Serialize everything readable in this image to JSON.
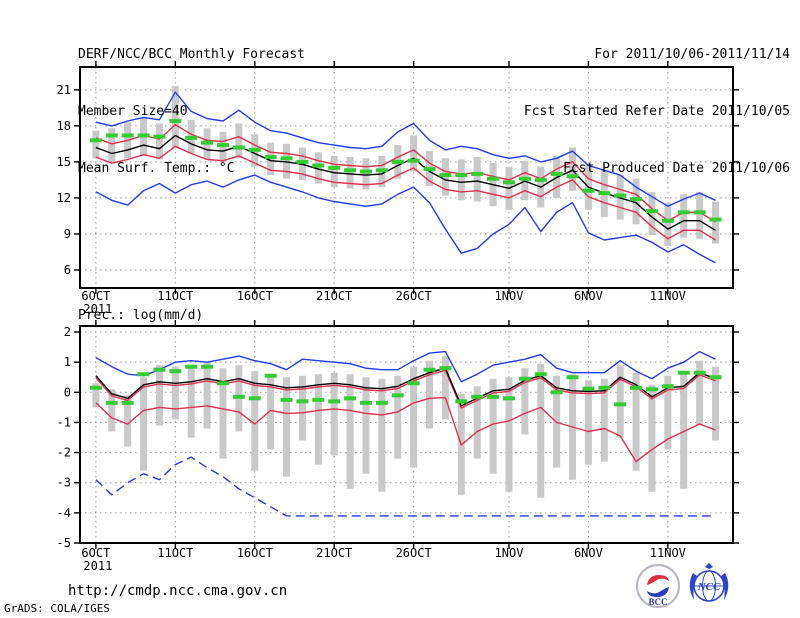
{
  "header": {
    "title": "DERF/NCC/BCC Monthly Forecast",
    "member_size": "Member Size=40",
    "for_range": "For 2011/10/06-2011/11/14",
    "refer_date": "Fcst Started Refer Date 2011/10/05",
    "produced_date": "Fcst Produced Date 2011/10/06"
  },
  "footer": {
    "url": "http://cmdp.ncc.cma.gov.cn",
    "credit": "GrADS: COLA/IGES",
    "logo_bcc": "BCC",
    "logo_ncc": "NCC"
  },
  "colors": {
    "envelope_blue": "#1e3cf0",
    "spread_red": "#e13048",
    "mean_black": "#000000",
    "forecast_green": "#33cc33",
    "bar_gray": "#c9c9c9",
    "grid_gray": "#9a9a9a"
  },
  "chart_data": [
    {
      "name": "surface-temperature-forecast",
      "type": "line",
      "label": "Mean Surf. Temp.: °C",
      "n_days": 40,
      "xlim": [
        -1,
        40.1
      ],
      "ylim": [
        4.5,
        22.9
      ],
      "yticks": [
        21,
        18,
        15,
        12,
        9,
        6
      ],
      "xticks": [
        {
          "label": "6OCT",
          "day": 0,
          "sub": "2011"
        },
        {
          "label": "11OCT",
          "day": 5
        },
        {
          "label": "16OCT",
          "day": 10
        },
        {
          "label": "21OCT",
          "day": 15
        },
        {
          "label": "26OCT",
          "day": 20
        },
        {
          "label": "1NOV",
          "day": 26
        },
        {
          "label": "6NOV",
          "day": 31
        },
        {
          "label": "11NOV",
          "day": 36
        }
      ],
      "bars": {
        "name": "member-spread-bar",
        "color": "#c9c9c9",
        "lo": [
          15.3,
          15.0,
          15.3,
          15.6,
          15.2,
          16.1,
          15.7,
          15.2,
          15.0,
          15.3,
          14.6,
          13.9,
          13.6,
          13.5,
          13.2,
          12.9,
          12.8,
          12.7,
          12.9,
          13.6,
          14.2,
          13.0,
          12.2,
          11.8,
          11.7,
          11.3,
          11.0,
          11.8,
          11.2,
          12.0,
          12.6,
          11.0,
          10.4,
          10.2,
          9.8,
          8.9,
          8.0,
          8.7,
          8.6,
          8.2
        ],
        "hi": [
          17.6,
          17.8,
          18.3,
          18.7,
          18.2,
          21.3,
          18.5,
          17.8,
          17.5,
          18.2,
          17.3,
          16.6,
          16.5,
          16.2,
          15.8,
          15.5,
          15.4,
          15.3,
          15.5,
          16.4,
          17.2,
          15.9,
          15.3,
          15.2,
          15.4,
          14.9,
          14.6,
          15.1,
          14.6,
          15.5,
          16.2,
          14.8,
          14.3,
          13.9,
          13.6,
          12.5,
          11.6,
          12.3,
          12.5,
          11.7
        ]
      },
      "series": [
        {
          "name": "envelope-max",
          "color": "#1e3cf0",
          "width": 1.4,
          "values": [
            18.3,
            18.0,
            18.4,
            18.7,
            18.5,
            20.8,
            19.2,
            18.6,
            18.4,
            19.3,
            18.3,
            17.6,
            17.4,
            17.0,
            16.6,
            16.4,
            16.2,
            16.1,
            16.3,
            17.5,
            18.2,
            16.8,
            16.0,
            16.3,
            16.1,
            15.6,
            15.3,
            15.5,
            15.0,
            15.3,
            15.9,
            14.7,
            14.3,
            13.9,
            12.9,
            12.1,
            11.3,
            11.9,
            12.4,
            11.8
          ]
        },
        {
          "name": "spread-upper",
          "color": "#e13048",
          "width": 1.4,
          "values": [
            17.0,
            16.5,
            16.8,
            17.2,
            16.9,
            18.1,
            17.3,
            16.8,
            16.7,
            17.1,
            16.4,
            15.8,
            15.7,
            15.5,
            15.1,
            14.8,
            14.7,
            14.6,
            14.7,
            15.4,
            16.0,
            14.9,
            14.2,
            14.0,
            14.1,
            13.8,
            13.5,
            14.1,
            13.6,
            14.4,
            15.0,
            13.6,
            13.1,
            12.7,
            12.3,
            11.1,
            10.1,
            10.8,
            10.8,
            10.0
          ]
        },
        {
          "name": "ensemble-mean",
          "color": "#000000",
          "width": 1.4,
          "values": [
            16.2,
            15.7,
            16.0,
            16.4,
            16.1,
            17.2,
            16.5,
            16.0,
            15.9,
            16.3,
            15.7,
            15.1,
            15.0,
            14.8,
            14.4,
            14.1,
            14.0,
            13.9,
            14.0,
            14.7,
            15.3,
            14.2,
            13.5,
            13.3,
            13.4,
            13.1,
            12.8,
            13.4,
            12.9,
            13.7,
            14.3,
            12.9,
            12.4,
            12.0,
            11.6,
            10.4,
            9.4,
            10.1,
            10.1,
            9.3
          ]
        },
        {
          "name": "spread-lower",
          "color": "#e13048",
          "width": 1.4,
          "values": [
            15.4,
            14.9,
            15.2,
            15.6,
            15.3,
            16.3,
            15.7,
            15.2,
            15.1,
            15.5,
            14.9,
            14.3,
            14.2,
            14.0,
            13.6,
            13.3,
            13.2,
            13.1,
            13.2,
            13.9,
            14.5,
            13.4,
            12.7,
            12.5,
            12.6,
            12.3,
            12.0,
            12.6,
            12.1,
            12.9,
            13.5,
            12.1,
            11.6,
            11.2,
            10.8,
            9.6,
            8.6,
            9.3,
            9.3,
            8.5
          ]
        },
        {
          "name": "envelope-min",
          "color": "#1e3cf0",
          "width": 1.4,
          "values": [
            12.5,
            11.8,
            11.4,
            12.6,
            13.2,
            12.4,
            13.1,
            13.4,
            12.9,
            13.5,
            13.9,
            13.3,
            12.9,
            12.5,
            12.0,
            11.7,
            11.5,
            11.3,
            11.5,
            12.3,
            12.9,
            11.6,
            9.4,
            7.4,
            7.8,
            9.0,
            9.8,
            11.2,
            9.2,
            10.8,
            11.6,
            9.1,
            8.5,
            8.7,
            8.9,
            8.3,
            7.5,
            8.1,
            7.3,
            6.6
          ]
        },
        {
          "name": "forecast-dashes",
          "color": "#33cc33",
          "type": "dash-marks",
          "width": 4,
          "values": [
            16.8,
            17.2,
            17.2,
            17.2,
            17.1,
            18.4,
            17.0,
            16.6,
            16.4,
            16.2,
            16.0,
            15.4,
            15.3,
            15.0,
            14.7,
            14.5,
            14.3,
            14.2,
            14.3,
            15.0,
            15.1,
            14.4,
            13.9,
            13.9,
            14.0,
            13.6,
            13.3,
            13.6,
            13.5,
            14.0,
            13.8,
            12.6,
            12.4,
            12.2,
            11.9,
            10.9,
            10.1,
            10.8,
            10.8,
            10.2
          ]
        }
      ]
    },
    {
      "name": "precipitation-forecast",
      "type": "line",
      "label": "Prec.: log(mm/d)",
      "n_days": 40,
      "xlim": [
        -1,
        40.1
      ],
      "ylim": [
        -5.0,
        2.2
      ],
      "yticks": [
        2,
        1,
        0,
        -1,
        -2,
        -3,
        -4,
        -5
      ],
      "xticks": [
        {
          "label": "6OCT",
          "day": 0,
          "sub": "2011"
        },
        {
          "label": "11OCT",
          "day": 5
        },
        {
          "label": "16OCT",
          "day": 10
        },
        {
          "label": "21OCT",
          "day": 15
        },
        {
          "label": "26OCT",
          "day": 20
        },
        {
          "label": "1NOV",
          "day": 26
        },
        {
          "label": "6NOV",
          "day": 31
        },
        {
          "label": "11NOV",
          "day": 36
        }
      ],
      "bars": {
        "name": "member-spread-bar",
        "color": "#c9c9c9",
        "lo": [
          -0.5,
          -1.3,
          -1.8,
          -2.6,
          -1.1,
          -0.9,
          -1.5,
          -1.2,
          -2.2,
          -1.3,
          -2.6,
          -1.9,
          -2.8,
          -1.6,
          -2.4,
          -2.1,
          -3.2,
          -2.7,
          -3.3,
          -2.2,
          -2.5,
          -1.2,
          -0.9,
          -3.4,
          -2.2,
          -2.7,
          -3.3,
          -1.4,
          -3.5,
          -2.5,
          -2.9,
          -2.4,
          -2.3,
          -1.5,
          -2.6,
          -3.3,
          -1.9,
          -3.2,
          -1.1,
          -1.6
        ],
        "hi": [
          0.3,
          0.1,
          -0.1,
          0.5,
          0.9,
          0.85,
          0.9,
          1.0,
          0.8,
          0.9,
          0.7,
          0.6,
          0.5,
          0.55,
          0.6,
          0.65,
          0.6,
          0.5,
          0.45,
          0.55,
          0.85,
          1.05,
          1.2,
          -0.05,
          0.2,
          0.45,
          0.5,
          0.8,
          0.95,
          0.55,
          0.6,
          0.4,
          0.45,
          0.9,
          0.65,
          0.25,
          0.55,
          0.6,
          1.05,
          0.85
        ]
      },
      "series": [
        {
          "name": "envelope-max",
          "color": "#1e3cf0",
          "width": 1.4,
          "values": [
            1.15,
            0.85,
            0.6,
            0.55,
            0.75,
            1.0,
            1.05,
            1.0,
            1.1,
            1.2,
            1.05,
            0.95,
            0.75,
            1.1,
            1.05,
            1.0,
            0.95,
            0.8,
            0.75,
            0.75,
            1.05,
            1.3,
            1.35,
            0.35,
            0.6,
            0.9,
            1.0,
            1.1,
            1.25,
            0.8,
            0.65,
            0.65,
            0.65,
            1.05,
            0.7,
            0.45,
            0.8,
            1.0,
            1.35,
            1.1
          ]
        },
        {
          "name": "spread-upper",
          "color": "#e13048",
          "width": 1.4,
          "values": [
            0.48,
            -0.12,
            -0.27,
            0.18,
            0.28,
            0.23,
            0.28,
            0.38,
            0.28,
            0.38,
            0.23,
            0.18,
            0.08,
            0.11,
            0.18,
            0.23,
            0.18,
            0.08,
            0.05,
            0.13,
            0.38,
            0.58,
            0.73,
            -0.52,
            -0.27,
            -0.02,
            0.03,
            0.33,
            0.48,
            0.08,
            -0.02,
            -0.04,
            -0.02,
            0.43,
            0.18,
            -0.22,
            0.08,
            0.13,
            0.58,
            0.38
          ]
        },
        {
          "name": "ensemble-mean",
          "color": "#000000",
          "width": 1.4,
          "values": [
            0.55,
            -0.05,
            -0.2,
            0.25,
            0.35,
            0.3,
            0.35,
            0.45,
            0.35,
            0.45,
            0.3,
            0.25,
            0.15,
            0.18,
            0.25,
            0.3,
            0.25,
            0.15,
            0.12,
            0.2,
            0.45,
            0.65,
            0.8,
            -0.45,
            -0.2,
            0.05,
            0.1,
            0.4,
            0.55,
            0.15,
            0.05,
            0.03,
            0.05,
            0.5,
            0.25,
            -0.15,
            0.15,
            0.2,
            0.65,
            0.45
          ]
        },
        {
          "name": "spread-lower",
          "color": "#e13048",
          "width": 1.4,
          "values": [
            -0.35,
            -0.85,
            -1.05,
            -0.6,
            -0.5,
            -0.55,
            -0.5,
            -0.45,
            -0.55,
            -0.65,
            -1.05,
            -0.6,
            -0.7,
            -0.68,
            -0.6,
            -0.55,
            -0.6,
            -0.7,
            -0.75,
            -0.65,
            -0.35,
            -0.2,
            -0.18,
            -1.75,
            -1.3,
            -1.05,
            -0.95,
            -0.7,
            -0.5,
            -1.0,
            -1.15,
            -1.3,
            -1.2,
            -1.45,
            -2.3,
            -1.9,
            -1.55,
            -1.3,
            -1.05,
            -1.25
          ]
        },
        {
          "name": "envelope-min",
          "color": "#1e3cf0",
          "width": 1.4,
          "dash": "9 5",
          "values": [
            -2.9,
            -3.4,
            -3.0,
            -2.7,
            -2.9,
            -2.4,
            -2.15,
            -2.5,
            -2.8,
            -3.2,
            -3.5,
            -3.8,
            -4.1,
            -4.1,
            -4.1,
            -4.1,
            -4.1,
            -4.1,
            -4.1,
            -4.1,
            -4.1,
            -4.1,
            -4.1,
            -4.1,
            -4.1,
            -4.1,
            -4.1,
            -4.1,
            -4.1,
            -4.1,
            -4.1,
            -4.1,
            -4.1,
            -4.1,
            -4.1,
            -4.1,
            -4.1,
            -4.1,
            -4.1,
            -4.1
          ]
        },
        {
          "name": "forecast-dashes",
          "color": "#33cc33",
          "type": "dash-marks",
          "width": 4,
          "values": [
            0.15,
            -0.35,
            -0.35,
            0.6,
            0.75,
            0.7,
            0.85,
            0.85,
            0.3,
            -0.15,
            -0.2,
            0.55,
            -0.25,
            -0.3,
            -0.25,
            -0.3,
            -0.2,
            -0.35,
            -0.35,
            -0.1,
            0.3,
            0.75,
            0.8,
            -0.3,
            -0.15,
            -0.15,
            -0.2,
            0.45,
            0.6,
            0.0,
            0.5,
            0.12,
            0.15,
            -0.4,
            0.15,
            0.1,
            0.2,
            0.65,
            0.65,
            0.5
          ]
        }
      ]
    }
  ]
}
